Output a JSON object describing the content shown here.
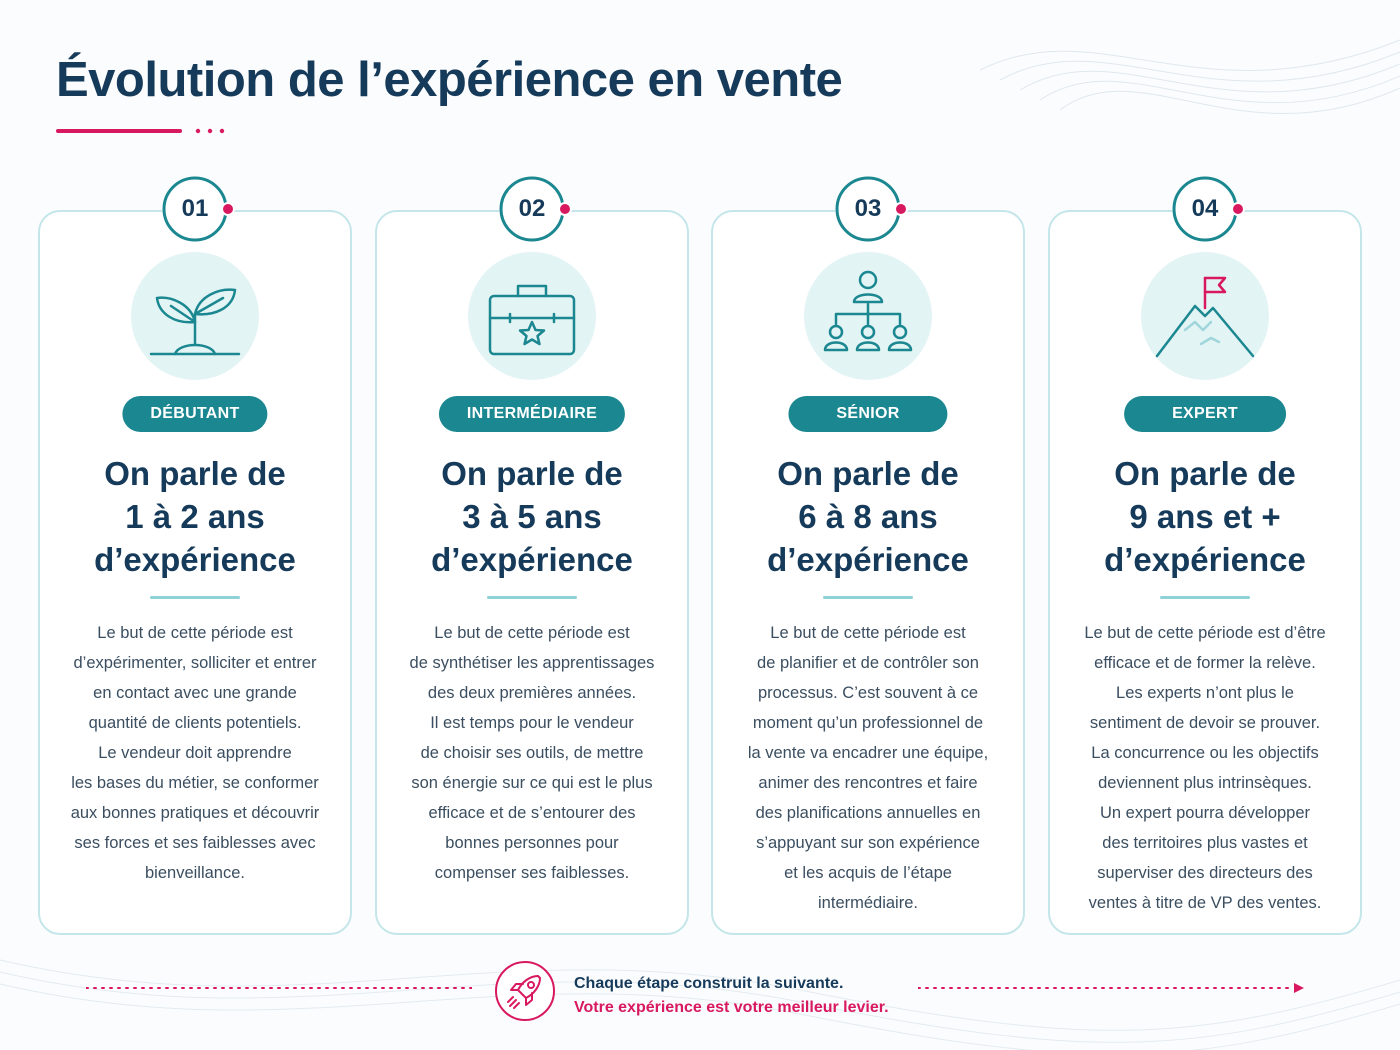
{
  "title": "Évolution de l’expérience en vente",
  "colors": {
    "navy": "#163a5a",
    "teal": "#1b8790",
    "accent": "#d8185f",
    "light_teal": "#e3f4f5"
  },
  "cards": [
    {
      "number": "01",
      "icon": "sprout-icon",
      "level": "DÉBUTANT",
      "heading": [
        "On parle de",
        "1 à 2 ans",
        "d’expérience"
      ],
      "body": [
        "Le but de cette période est",
        "d’expérimenter, solliciter et entrer",
        "en contact avec une grande",
        "quantité de clients potentiels.",
        "Le vendeur doit apprendre",
        "les bases du métier, se conformer",
        "aux bonnes pratiques et découvrir",
        "ses forces et ses faiblesses avec",
        "bienveillance."
      ]
    },
    {
      "number": "02",
      "icon": "toolbox-star-icon",
      "level": "INTERMÉDIAIRE",
      "heading": [
        "On parle de",
        "3 à 5 ans",
        "d’expérience"
      ],
      "body": [
        "Le but de cette période est",
        "de synthétiser les apprentissages",
        "des deux premières années.",
        "Il est temps pour le vendeur",
        "de choisir ses outils, de mettre",
        "son énergie sur ce qui est le plus",
        "efficace et de s’entourer des",
        "bonnes personnes pour",
        "compenser ses faiblesses."
      ]
    },
    {
      "number": "03",
      "icon": "team-hierarchy-icon",
      "level": "SÉNIOR",
      "heading": [
        "On parle de",
        "6 à 8 ans",
        "d’expérience"
      ],
      "body": [
        "Le but de cette période est",
        "de planifier et de contrôler son",
        "processus. C’est souvent à ce",
        "moment qu’un professionnel de",
        "la vente va encadrer une équipe,",
        "animer des rencontres et faire",
        "des planifications annuelles en",
        "s’appuyant sur son expérience",
        "et les acquis de l’étape",
        "intermédiaire."
      ]
    },
    {
      "number": "04",
      "icon": "mountain-flag-icon",
      "level": "EXPERT",
      "heading": [
        "On parle de",
        "9 ans et +",
        "d’expérience"
      ],
      "body": [
        "Le but de cette période est d’être",
        "efficace et de former la relève.",
        "Les experts n’ont plus le",
        "sentiment de devoir se prouver.",
        "La concurrence ou les objectifs",
        "deviennent plus intrinsèques.",
        "Un expert pourra développer",
        "des territoires plus vastes et",
        "superviser des directeurs des",
        "ventes à titre de VP des ventes."
      ]
    }
  ],
  "footer": {
    "icon": "rocket-icon",
    "line1": "Chaque étape construit la suivante.",
    "line2": "Votre expérience est votre meilleur levier."
  }
}
